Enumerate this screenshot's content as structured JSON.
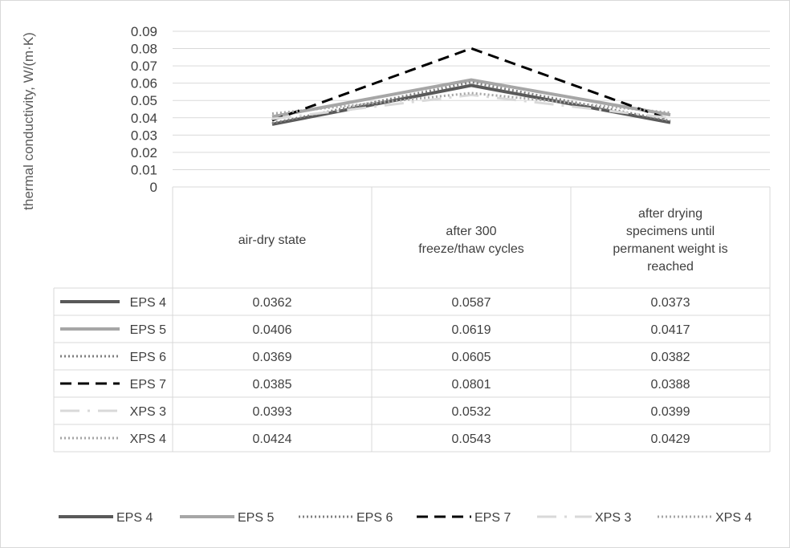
{
  "chart_data": {
    "type": "line",
    "ylabel": "thermal conductivity, W/(m·K)",
    "ylim": [
      0,
      0.09
    ],
    "yticks": [
      "0",
      "0.01",
      "0.02",
      "0.03",
      "0.04",
      "0.05",
      "0.06",
      "0.07",
      "0.08",
      "0.09"
    ],
    "grid": true,
    "legend": "bottom",
    "data_table": true,
    "categories": [
      [
        "air-dry state"
      ],
      [
        "after 300",
        "freeze/thaw cycles"
      ],
      [
        "after drying",
        "specimens until",
        "permanent weight is",
        "reached"
      ]
    ],
    "series": [
      {
        "name": "EPS 4",
        "values": [
          0.0362,
          0.0587,
          0.0373
        ],
        "labels": [
          "0.0362",
          "0.0587",
          "0.0373"
        ],
        "color": "#595959",
        "style": "solid-thick"
      },
      {
        "name": "EPS 5",
        "values": [
          0.0406,
          0.0619,
          0.0417
        ],
        "labels": [
          "0.0406",
          "0.0619",
          "0.0417"
        ],
        "color": "#a6a6a6",
        "style": "solid-thick"
      },
      {
        "name": "EPS 6",
        "values": [
          0.0369,
          0.0605,
          0.0382
        ],
        "labels": [
          "0.0369",
          "0.0605",
          "0.0382"
        ],
        "color": "#7f7f7f",
        "style": "dotted"
      },
      {
        "name": "EPS 7",
        "values": [
          0.0385,
          0.0801,
          0.0388
        ],
        "labels": [
          "0.0385",
          "0.0801",
          "0.0388"
        ],
        "color": "#000000",
        "style": "dashed"
      },
      {
        "name": "XPS 3",
        "values": [
          0.0393,
          0.0532,
          0.0399
        ],
        "labels": [
          "0.0393",
          "0.0532",
          "0.0399"
        ],
        "color": "#d9d9d9",
        "style": "long-dash-dot"
      },
      {
        "name": "XPS 4",
        "values": [
          0.0424,
          0.0543,
          0.0429
        ],
        "labels": [
          "0.0424",
          "0.0543",
          "0.0429"
        ],
        "color": "#a6a6a6",
        "style": "dotted"
      }
    ]
  }
}
